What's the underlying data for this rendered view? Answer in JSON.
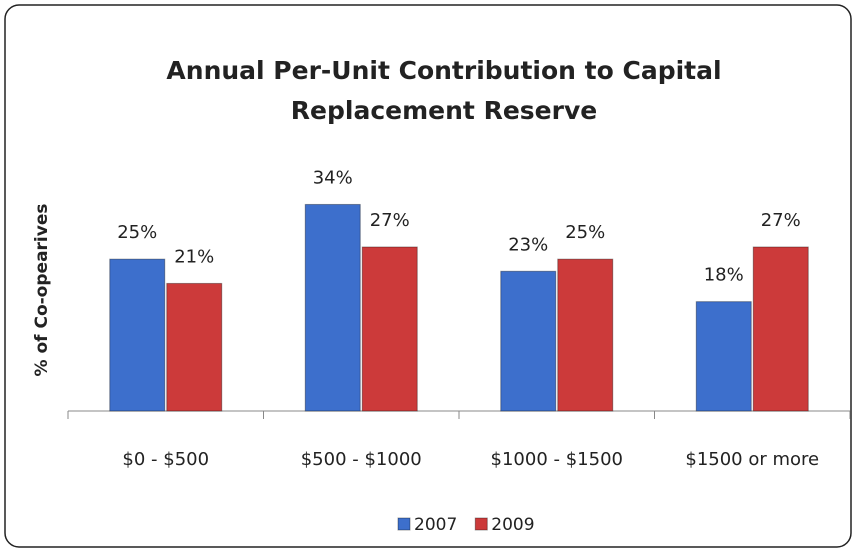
{
  "chart_data": {
    "type": "bar",
    "title": [
      "Annual Per-Unit Contribution to Capital",
      "Replacement Reserve"
    ],
    "y_label": "% of Co-opearives",
    "categories": [
      "$0 - $500",
      "$500 - $1000",
      "$1000 - $1500",
      "$1500 or more"
    ],
    "series": [
      {
        "name": "2007",
        "color": "#3d6fcc",
        "values": [
          25,
          34,
          23,
          18
        ],
        "value_labels": [
          "25%",
          "34%",
          "23%",
          "18%"
        ]
      },
      {
        "name": "2009",
        "color": "#cc3a3a",
        "values": [
          21,
          27,
          25,
          27
        ],
        "value_labels": [
          "21%",
          "27%",
          "25%",
          "27%"
        ]
      }
    ],
    "ylim": [
      0,
      40
    ],
    "legend": "bottom"
  }
}
